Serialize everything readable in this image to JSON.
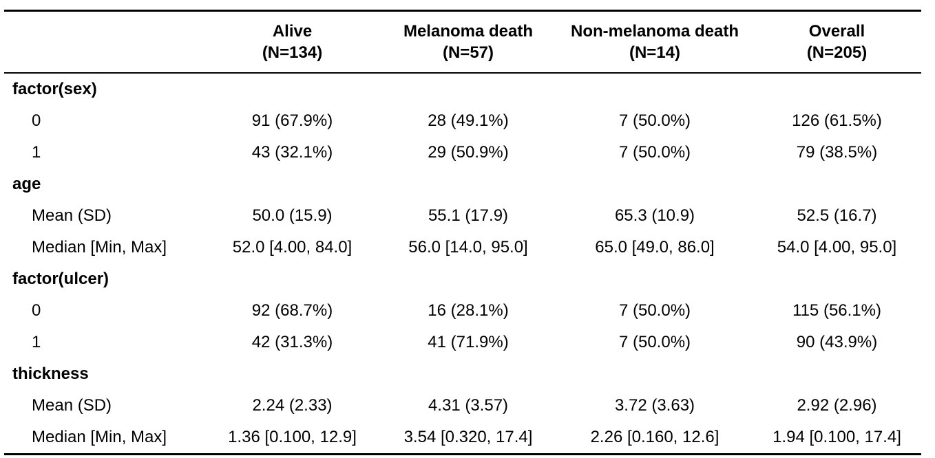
{
  "columns": [
    {
      "key": "alive",
      "label": "Alive",
      "n": "(N=134)"
    },
    {
      "key": "melanoma",
      "label": "Melanoma death",
      "n": "(N=57)"
    },
    {
      "key": "nonmelanoma",
      "label": "Non-melanoma death",
      "n": "(N=14)"
    },
    {
      "key": "overall",
      "label": "Overall",
      "n": "(N=205)"
    }
  ],
  "rows": [
    {
      "type": "var",
      "label": "factor(sex)"
    },
    {
      "type": "stat",
      "label": "0",
      "values": [
        "91 (67.9%)",
        "28 (49.1%)",
        "7 (50.0%)",
        "126 (61.5%)"
      ]
    },
    {
      "type": "stat",
      "label": "1",
      "values": [
        "43 (32.1%)",
        "29 (50.9%)",
        "7 (50.0%)",
        "79 (38.5%)"
      ]
    },
    {
      "type": "var",
      "label": "age"
    },
    {
      "type": "stat",
      "label": "Mean (SD)",
      "values": [
        "50.0 (15.9)",
        "55.1 (17.9)",
        "65.3 (10.9)",
        "52.5 (16.7)"
      ]
    },
    {
      "type": "stat",
      "label": "Median [Min, Max]",
      "values": [
        "52.0 [4.00, 84.0]",
        "56.0 [14.0, 95.0]",
        "65.0 [49.0, 86.0]",
        "54.0 [4.00, 95.0]"
      ]
    },
    {
      "type": "var",
      "label": "factor(ulcer)"
    },
    {
      "type": "stat",
      "label": "0",
      "values": [
        "92 (68.7%)",
        "16 (28.1%)",
        "7 (50.0%)",
        "115 (56.1%)"
      ]
    },
    {
      "type": "stat",
      "label": "1",
      "values": [
        "42 (31.3%)",
        "41 (71.9%)",
        "7 (50.0%)",
        "90 (43.9%)"
      ]
    },
    {
      "type": "var",
      "label": "thickness"
    },
    {
      "type": "stat",
      "label": "Mean (SD)",
      "values": [
        "2.24 (2.33)",
        "4.31 (3.57)",
        "3.72 (3.63)",
        "2.92 (2.96)"
      ]
    },
    {
      "type": "stat",
      "label": "Median [Min, Max]",
      "values": [
        "1.36 [0.100, 12.9]",
        "3.54 [0.320, 17.4]",
        "2.26 [0.160, 12.6]",
        "1.94 [0.100, 17.4]"
      ]
    }
  ]
}
